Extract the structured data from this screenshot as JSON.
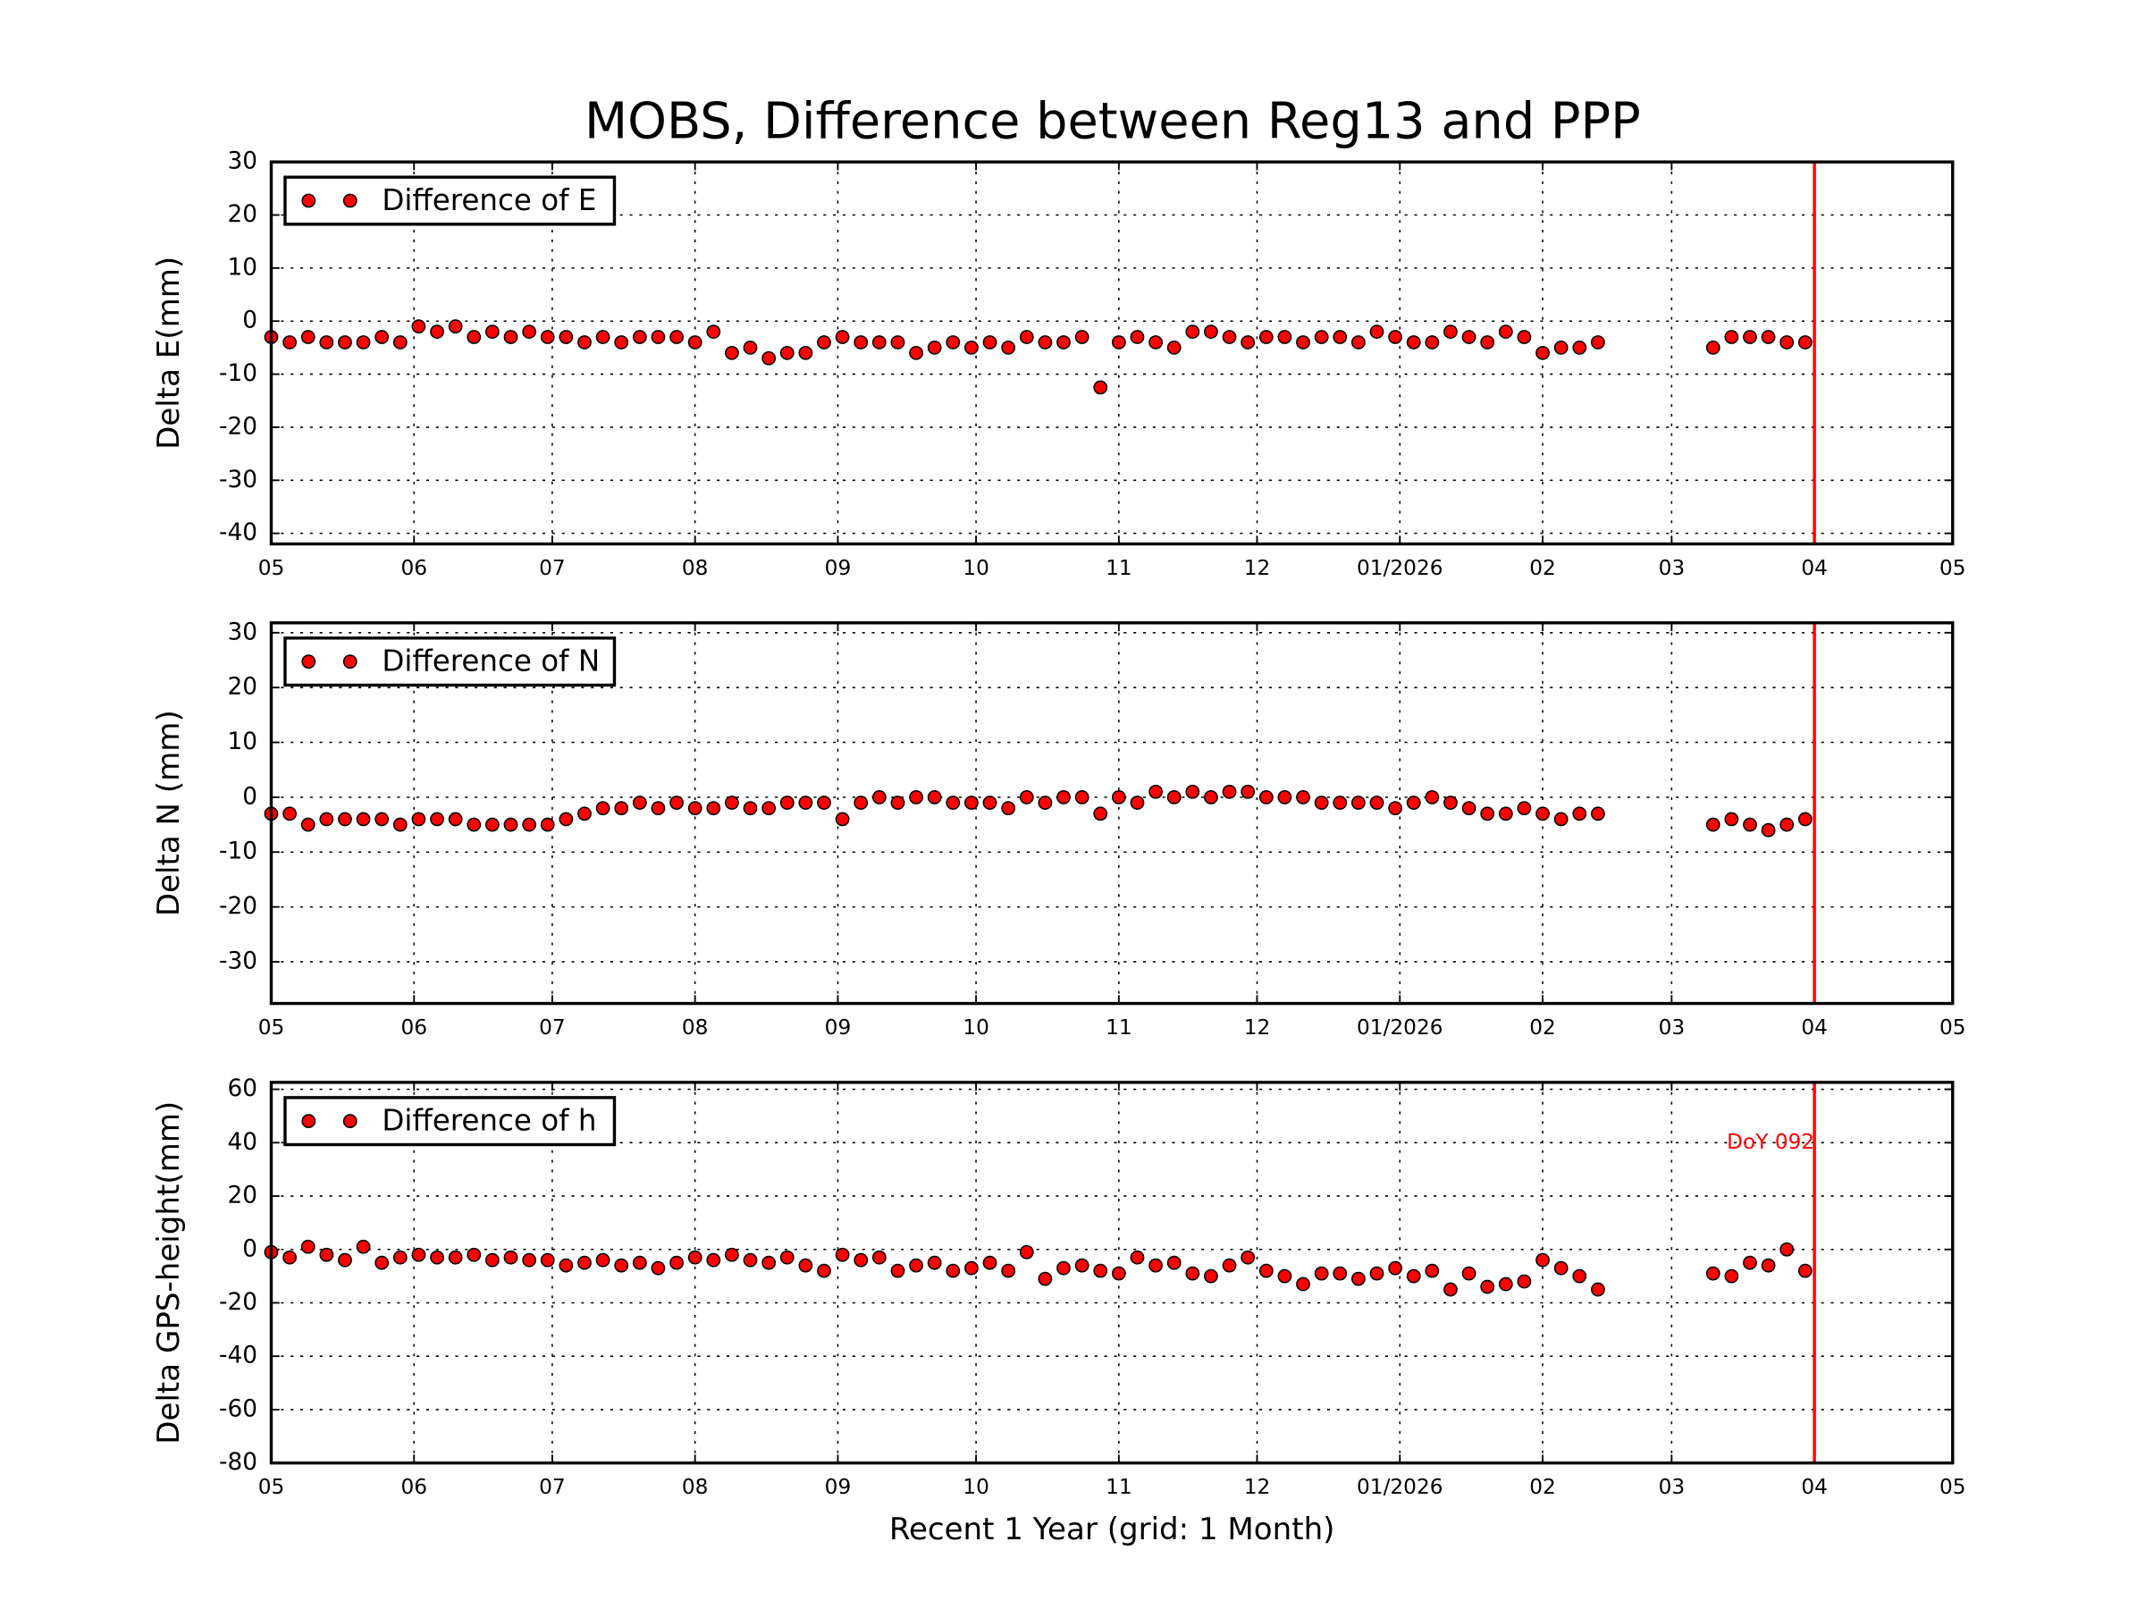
{
  "figure_title": "MOBS, Difference between Reg13 and PPP",
  "chart_data": [
    {
      "type": "scatter",
      "ylabel": "Delta E(mm)",
      "x": [
        0,
        4,
        8,
        12,
        16,
        20,
        24,
        28,
        32,
        36,
        40,
        44,
        48,
        52,
        56,
        60,
        64,
        68,
        72,
        76,
        80,
        84,
        88,
        92,
        96,
        100,
        104,
        108,
        112,
        116,
        120,
        124,
        128,
        132,
        136,
        140,
        144,
        148,
        152,
        156,
        160,
        164,
        168,
        172,
        176,
        180,
        184,
        188,
        192,
        196,
        200,
        204,
        208,
        212,
        216,
        220,
        224,
        228,
        232,
        236,
        240,
        244,
        248,
        252,
        256,
        260,
        264,
        268,
        272,
        276,
        280,
        284,
        288,
        313,
        317,
        321,
        325,
        329,
        333
      ],
      "series": [
        {
          "name": "Difference of E",
          "color": "#ff0000",
          "values": [
            -3,
            -4,
            -3,
            -4,
            -4,
            -4,
            -3,
            -4,
            -1,
            -2,
            -1,
            -3,
            -2,
            -3,
            -2,
            -3,
            -3,
            -4,
            -3,
            -4,
            -3,
            -3,
            -3,
            -4,
            -2,
            -6,
            -5,
            -7,
            -6,
            -6,
            -4,
            -3,
            -4,
            -4,
            -4,
            -6,
            -5,
            -4,
            -5,
            -4,
            -5,
            -3,
            -4,
            -4,
            -3,
            -12.5,
            -4,
            -3,
            -4,
            -5,
            -2,
            -2,
            -3,
            -4,
            -3,
            -3,
            -4,
            -3,
            -3,
            -4,
            -2,
            -3,
            -4,
            -4,
            -2,
            -3,
            -4,
            -2,
            -3,
            -6,
            -5,
            -5,
            -4,
            -5,
            -3,
            -3,
            -3,
            -4,
            -4
          ]
        }
      ],
      "xlim": [
        0,
        365
      ],
      "xticks": [
        {
          "value": 0,
          "label": "05"
        },
        {
          "value": 31,
          "label": "06"
        },
        {
          "value": 61,
          "label": "07"
        },
        {
          "value": 92,
          "label": "08"
        },
        {
          "value": 123,
          "label": "09"
        },
        {
          "value": 153,
          "label": "10"
        },
        {
          "value": 184,
          "label": "11"
        },
        {
          "value": 214,
          "label": "12"
        },
        {
          "value": 245,
          "label": "01/2026"
        },
        {
          "value": 276,
          "label": "02"
        },
        {
          "value": 304,
          "label": "03"
        },
        {
          "value": 335,
          "label": "04"
        },
        {
          "value": 365,
          "label": "05"
        }
      ],
      "ylim": [
        -42,
        30
      ],
      "yticks": [
        -40,
        -30,
        -20,
        -10,
        0,
        10,
        20,
        30
      ],
      "grid": true,
      "legend": "upper left",
      "vline": 335,
      "vline_color": "#ff0000"
    },
    {
      "type": "scatter",
      "ylabel": "Delta N (mm)",
      "x": [
        0,
        4,
        8,
        12,
        16,
        20,
        24,
        28,
        32,
        36,
        40,
        44,
        48,
        52,
        56,
        60,
        64,
        68,
        72,
        76,
        80,
        84,
        88,
        92,
        96,
        100,
        104,
        108,
        112,
        116,
        120,
        124,
        128,
        132,
        136,
        140,
        144,
        148,
        152,
        156,
        160,
        164,
        168,
        172,
        176,
        180,
        184,
        188,
        192,
        196,
        200,
        204,
        208,
        212,
        216,
        220,
        224,
        228,
        232,
        236,
        240,
        244,
        248,
        252,
        256,
        260,
        264,
        268,
        272,
        276,
        280,
        284,
        288,
        313,
        317,
        321,
        325,
        329,
        333
      ],
      "series": [
        {
          "name": "Difference of N",
          "color": "#ff0000",
          "values": [
            -3,
            -3,
            -5,
            -4,
            -4,
            -4,
            -4,
            -5,
            -4,
            -4,
            -4,
            -5,
            -5,
            -5,
            -5,
            -5,
            -4,
            -3,
            -2,
            -2,
            -1,
            -2,
            -1,
            -2,
            -2,
            -1,
            -2,
            -2,
            -1,
            -1,
            -1,
            -4,
            -1,
            0,
            -1,
            0,
            0,
            -1,
            -1,
            -1,
            -2,
            0,
            -1,
            0,
            0,
            -3,
            0,
            -1,
            1,
            0,
            1,
            0,
            1,
            1,
            0,
            0,
            0,
            -1,
            -1,
            -1,
            -1,
            -2,
            -1,
            0,
            -1,
            -2,
            -3,
            -3,
            -2,
            -3,
            -4,
            -3,
            -3,
            -5,
            -4,
            -5,
            -6,
            -5,
            -4
          ]
        }
      ],
      "xlim": [
        0,
        365
      ],
      "xticks": [
        {
          "value": 0,
          "label": "05"
        },
        {
          "value": 31,
          "label": "06"
        },
        {
          "value": 61,
          "label": "07"
        },
        {
          "value": 92,
          "label": "08"
        },
        {
          "value": 123,
          "label": "09"
        },
        {
          "value": 153,
          "label": "10"
        },
        {
          "value": 184,
          "label": "11"
        },
        {
          "value": 214,
          "label": "12"
        },
        {
          "value": 245,
          "label": "01/2026"
        },
        {
          "value": 276,
          "label": "02"
        },
        {
          "value": 304,
          "label": "03"
        },
        {
          "value": 335,
          "label": "04"
        },
        {
          "value": 365,
          "label": "05"
        }
      ],
      "ylim": [
        -37.6,
        31.8
      ],
      "yticks": [
        -30,
        -20,
        -10,
        0,
        10,
        20,
        30
      ],
      "grid": true,
      "legend": "upper left",
      "vline": 335,
      "vline_color": "#ff0000"
    },
    {
      "type": "scatter",
      "ylabel": "Delta GPS-height(mm)",
      "xlabel": "Recent 1 Year (grid: 1 Month)",
      "x": [
        0,
        4,
        8,
        12,
        16,
        20,
        24,
        28,
        32,
        36,
        40,
        44,
        48,
        52,
        56,
        60,
        64,
        68,
        72,
        76,
        80,
        84,
        88,
        92,
        96,
        100,
        104,
        108,
        112,
        116,
        120,
        124,
        128,
        132,
        136,
        140,
        144,
        148,
        152,
        156,
        160,
        164,
        168,
        172,
        176,
        180,
        184,
        188,
        192,
        196,
        200,
        204,
        208,
        212,
        216,
        220,
        224,
        228,
        232,
        236,
        240,
        244,
        248,
        252,
        256,
        260,
        264,
        268,
        272,
        276,
        280,
        284,
        288,
        313,
        317,
        321,
        325,
        329,
        333
      ],
      "series": [
        {
          "name": "Difference of h",
          "color": "#ff0000",
          "values": [
            -1,
            -3,
            1,
            -2,
            -4,
            1,
            -5,
            -3,
            -2,
            -3,
            -3,
            -2,
            -4,
            -3,
            -4,
            -4,
            -6,
            -5,
            -4,
            -6,
            -5,
            -7,
            -5,
            -3,
            -4,
            -2,
            -4,
            -5,
            -3,
            -6,
            -8,
            -2,
            -4,
            -3,
            -8,
            -6,
            -5,
            -8,
            -7,
            -5,
            -8,
            -1,
            -11,
            -7,
            -6,
            -8,
            -9,
            -3,
            -6,
            -5,
            -9,
            -10,
            -6,
            -3,
            -8,
            -10,
            -13,
            -9,
            -9,
            -11,
            -9,
            -7,
            -10,
            -8,
            -15,
            -9,
            -14,
            -13,
            -12,
            -4,
            -7,
            -10,
            -15,
            -9,
            -10,
            -5,
            -6,
            0,
            -8
          ]
        }
      ],
      "xlim": [
        0,
        365
      ],
      "xticks": [
        {
          "value": 0,
          "label": "05"
        },
        {
          "value": 31,
          "label": "06"
        },
        {
          "value": 61,
          "label": "07"
        },
        {
          "value": 92,
          "label": "08"
        },
        {
          "value": 123,
          "label": "09"
        },
        {
          "value": 153,
          "label": "10"
        },
        {
          "value": 184,
          "label": "11"
        },
        {
          "value": 214,
          "label": "12"
        },
        {
          "value": 245,
          "label": "01/2026"
        },
        {
          "value": 276,
          "label": "02"
        },
        {
          "value": 304,
          "label": "03"
        },
        {
          "value": 335,
          "label": "04"
        },
        {
          "value": 365,
          "label": "05"
        }
      ],
      "ylim": [
        -80,
        62.6
      ],
      "yticks": [
        -80,
        -60,
        -40,
        -20,
        0,
        20,
        40,
        60
      ],
      "grid": true,
      "legend": "upper left",
      "vline": 335,
      "vline_color": "#ff0000",
      "annotation": {
        "text": "DoY 092",
        "x": 335,
        "y": 40
      }
    }
  ]
}
